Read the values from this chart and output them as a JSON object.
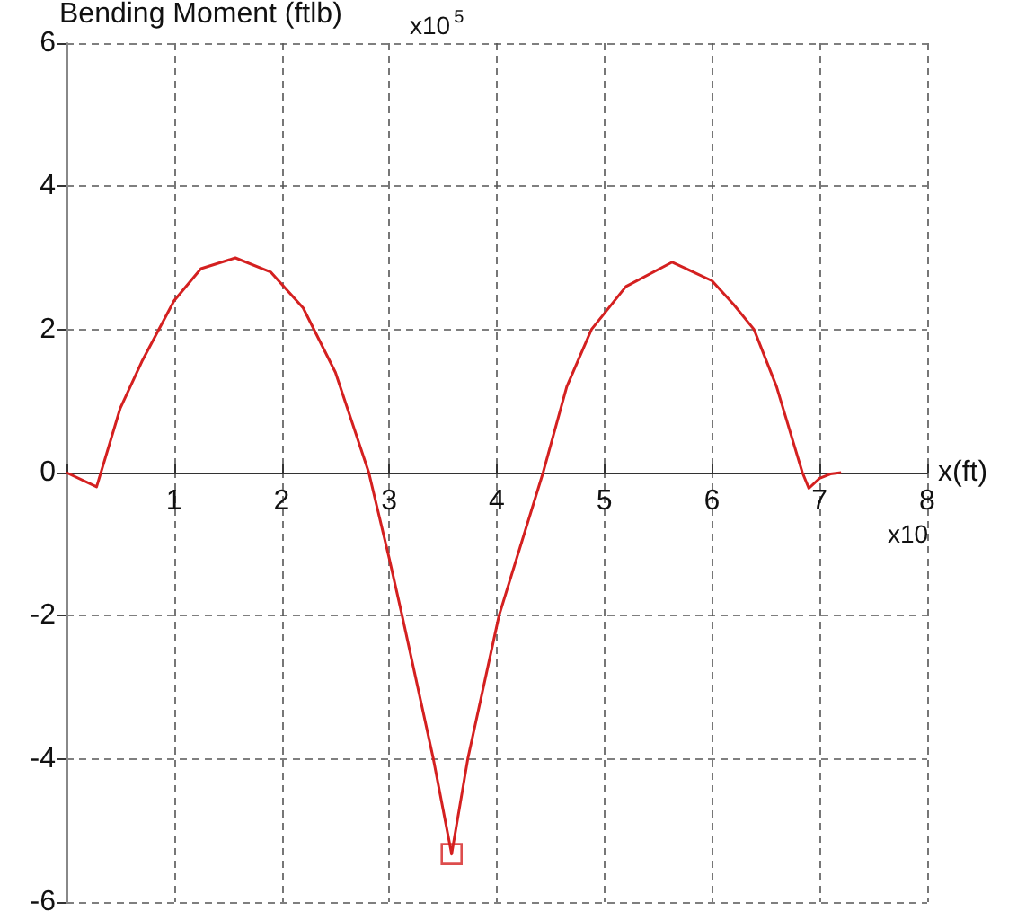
{
  "chart_data": {
    "type": "line",
    "ylabel": "Bending Moment (ftlb)",
    "xlabel": "x(ft)",
    "annotations": [
      "x10$^{5}$",
      "x10"
    ],
    "series": [
      {
        "color": "#d42020",
        "marker": "none",
        "x": [
          0,
          0.28,
          0.5,
          0.7,
          1.0,
          1.25,
          1.57,
          1.9,
          2.2,
          2.5,
          2.81,
          3.0,
          3.12,
          3.41,
          3.58,
          3.73,
          4.02,
          4.43,
          4.65,
          4.88,
          5.2,
          5.63,
          6.0,
          6.2,
          6.39,
          6.6,
          6.84,
          6.9,
          7.0,
          7.1,
          7.2
        ],
        "values": [
          0,
          -0.2,
          0.9,
          1.55,
          2.4,
          2.85,
          3.0,
          2.8,
          2.3,
          1.4,
          0,
          -1.2,
          -2,
          -4,
          -5.33,
          -4,
          -2,
          0,
          1.2,
          2.0,
          2.6,
          2.94,
          2.68,
          2.35,
          2.0,
          1.2,
          0,
          -0.22,
          -0.08,
          -0.02,
          0
        ]
      },
      {
        "type": "scatter",
        "color": "#d42020",
        "marker": "square",
        "x": [
          3.58
        ],
        "values": [
          -5.33
        ]
      }
    ],
    "xlim": [
      0,
      8
    ],
    "xticks": [
      {
        "value": 0,
        "label": null
      },
      1,
      2,
      3,
      4,
      5,
      6,
      7,
      8
    ],
    "ylim": [
      -6,
      6
    ],
    "yticks": [
      -6,
      -4,
      -2,
      0,
      2,
      4,
      6
    ],
    "grid": true
  }
}
